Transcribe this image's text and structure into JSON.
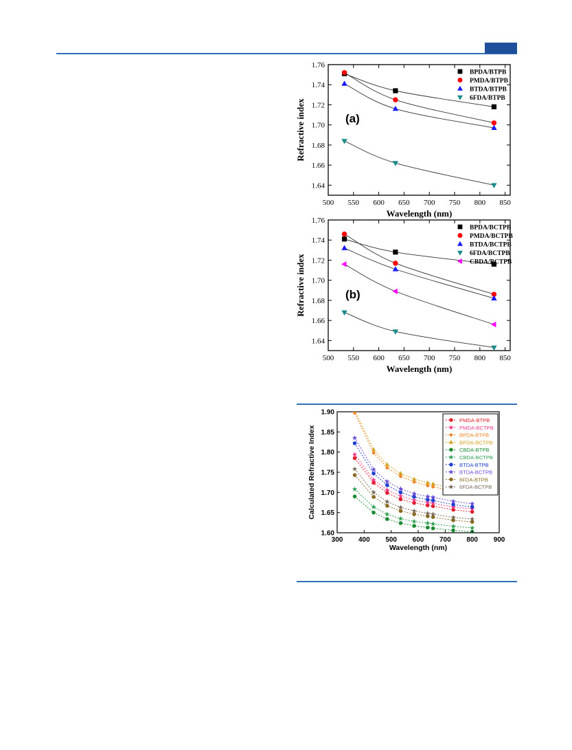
{
  "colors": {
    "accent": "#2f6db5",
    "accent_dark": "#1f4f9a"
  },
  "chart_data": [
    {
      "type": "scatter",
      "panel_label": "(a)",
      "xlabel": "Wavelength (nm)",
      "ylabel": "Refractive index",
      "xlim": [
        500,
        860
      ],
      "ylim": [
        1.63,
        1.76
      ],
      "xticks": [
        "500",
        "550",
        "600",
        "650",
        "700",
        "750",
        "800",
        "850"
      ],
      "yticks": [
        "1.64",
        "1.66",
        "1.68",
        "1.70",
        "1.72",
        "1.74",
        "1.76"
      ],
      "x": [
        532,
        633,
        828
      ],
      "fit_lines": true,
      "legend_position": "top-right",
      "series": [
        {
          "name": "BPDA/BTPB",
          "marker": "square",
          "color": "#000000",
          "values": [
            1.751,
            1.734,
            1.718
          ]
        },
        {
          "name": "PMDA/BTPB",
          "marker": "circle",
          "color": "#ff0000",
          "values": [
            1.752,
            1.725,
            1.702
          ]
        },
        {
          "name": "BTDA/BTPB",
          "marker": "triangle-up",
          "color": "#1a1aff",
          "values": [
            1.741,
            1.716,
            1.697
          ]
        },
        {
          "name": "6FDA/BTPB",
          "marker": "triangle-down",
          "color": "#1a8a8a",
          "values": [
            1.684,
            1.662,
            1.64
          ]
        }
      ]
    },
    {
      "type": "scatter",
      "panel_label": "(b)",
      "xlabel": "Wavelength (nm)",
      "ylabel": "Refractive index",
      "xlim": [
        500,
        860
      ],
      "ylim": [
        1.63,
        1.76
      ],
      "xticks": [
        "500",
        "550",
        "600",
        "650",
        "700",
        "750",
        "800",
        "850"
      ],
      "yticks": [
        "1.64",
        "1.66",
        "1.68",
        "1.70",
        "1.72",
        "1.74",
        "1.76"
      ],
      "x": [
        532,
        633,
        828
      ],
      "fit_lines": true,
      "legend_position": "top-right",
      "series": [
        {
          "name": "BPDA/BCTPB",
          "marker": "square",
          "color": "#000000",
          "values": [
            1.741,
            1.728,
            1.716
          ]
        },
        {
          "name": "PMDA/BCTPB",
          "marker": "circle",
          "color": "#ff0000",
          "values": [
            1.746,
            1.717,
            1.686
          ]
        },
        {
          "name": "BTDA/BCTPB",
          "marker": "triangle-up",
          "color": "#1a1aff",
          "values": [
            1.732,
            1.711,
            1.682
          ]
        },
        {
          "name": "6FDA/BCTPB",
          "marker": "triangle-down",
          "color": "#1a8a8a",
          "values": [
            1.668,
            1.649,
            1.633
          ]
        },
        {
          "name": "CBDA/BCTPB",
          "marker": "triangle-left",
          "color": "#ff00ff",
          "values": [
            1.716,
            1.689,
            1.656
          ]
        }
      ]
    },
    {
      "type": "line",
      "xlabel": "Wavelength (nm)",
      "ylabel": "Calculated Refractive Index",
      "xlim": [
        300,
        900
      ],
      "ylim": [
        1.6,
        1.9
      ],
      "xticks": [
        "300",
        "400",
        "500",
        "600",
        "700",
        "800",
        "900"
      ],
      "yticks": [
        "1.60",
        "1.65",
        "1.70",
        "1.75",
        "1.80",
        "1.85",
        "1.90"
      ],
      "x": [
        365,
        435,
        485,
        535,
        585,
        635,
        655,
        730,
        800
      ],
      "legend_position": "top-right",
      "grid": false,
      "series": [
        {
          "name": "PMDA-BTPB",
          "color": "#e0202a",
          "marker": "circle",
          "values": [
            1.785,
            1.724,
            1.699,
            1.683,
            1.674,
            1.668,
            1.666,
            1.657,
            1.652
          ]
        },
        {
          "name": "PMDA-BCTPB",
          "color": "#ee3a8c",
          "marker": "star",
          "values": [
            1.794,
            1.731,
            1.706,
            1.691,
            1.681,
            1.675,
            1.673,
            1.664,
            1.659
          ]
        },
        {
          "name": "BPDA-BTPB",
          "color": "#f08020",
          "marker": "diamond",
          "values": [
            1.897,
            1.798,
            1.761,
            1.74,
            1.726,
            1.717,
            1.714,
            1.703,
            1.696
          ]
        },
        {
          "name": "BPDA-BCTPB",
          "color": "#d4a020",
          "marker": "triangle-up",
          "values": [
            1.903,
            1.806,
            1.769,
            1.747,
            1.733,
            1.724,
            1.721,
            1.71,
            1.703
          ]
        },
        {
          "name": "CBDA-BTPB",
          "color": "#1a8a30",
          "marker": "circle",
          "values": [
            1.69,
            1.65,
            1.634,
            1.624,
            1.617,
            1.613,
            1.611,
            1.606,
            1.602
          ]
        },
        {
          "name": "CBDA-BCTPB",
          "color": "#2e9e50",
          "marker": "star",
          "values": [
            1.708,
            1.664,
            1.646,
            1.635,
            1.628,
            1.624,
            1.622,
            1.616,
            1.612
          ]
        },
        {
          "name": "BTDA-BTPB",
          "color": "#2040d0",
          "marker": "circle",
          "values": [
            1.822,
            1.747,
            1.718,
            1.7,
            1.689,
            1.682,
            1.68,
            1.67,
            1.664
          ]
        },
        {
          "name": "BTDA-BCTPB",
          "color": "#6a4ad8",
          "marker": "star",
          "values": [
            1.835,
            1.757,
            1.727,
            1.709,
            1.697,
            1.69,
            1.688,
            1.678,
            1.672
          ]
        },
        {
          "name": "6FDA-BTPB",
          "color": "#8a6a20",
          "marker": "circle",
          "values": [
            1.743,
            1.689,
            1.667,
            1.654,
            1.646,
            1.641,
            1.639,
            1.631,
            1.627
          ]
        },
        {
          "name": "6FDA-BCTPB",
          "color": "#7a6a5a",
          "marker": "star",
          "values": [
            1.758,
            1.7,
            1.677,
            1.663,
            1.654,
            1.648,
            1.646,
            1.638,
            1.634
          ]
        }
      ]
    }
  ]
}
